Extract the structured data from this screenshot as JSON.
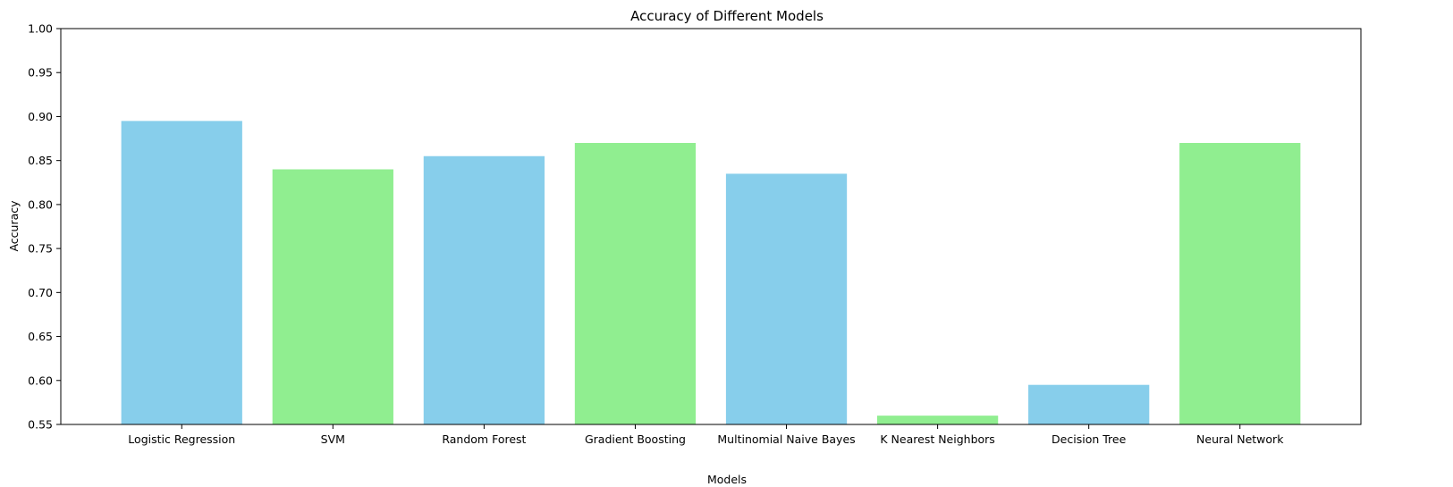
{
  "chart_data": {
    "type": "bar",
    "title": "Accuracy of Different Models",
    "xlabel": "Models",
    "ylabel": "Accuracy",
    "ylim": [
      0.55,
      1.0
    ],
    "yticks": [
      0.55,
      0.6,
      0.65,
      0.7,
      0.75,
      0.8,
      0.85,
      0.9,
      0.95,
      1.0
    ],
    "grid": false,
    "categories": [
      "Logistic Regression",
      "SVM",
      "Random Forest",
      "Gradient Boosting",
      "Multinomial Naive Bayes",
      "K Nearest Neighbors",
      "Decision Tree",
      "Neural Network"
    ],
    "values": [
      0.895,
      0.84,
      0.855,
      0.87,
      0.835,
      0.56,
      0.595,
      0.87
    ],
    "bar_colors": [
      "#87CEEB",
      "#90EE90",
      "#87CEEB",
      "#90EE90",
      "#87CEEB",
      "#90EE90",
      "#87CEEB",
      "#90EE90"
    ]
  }
}
